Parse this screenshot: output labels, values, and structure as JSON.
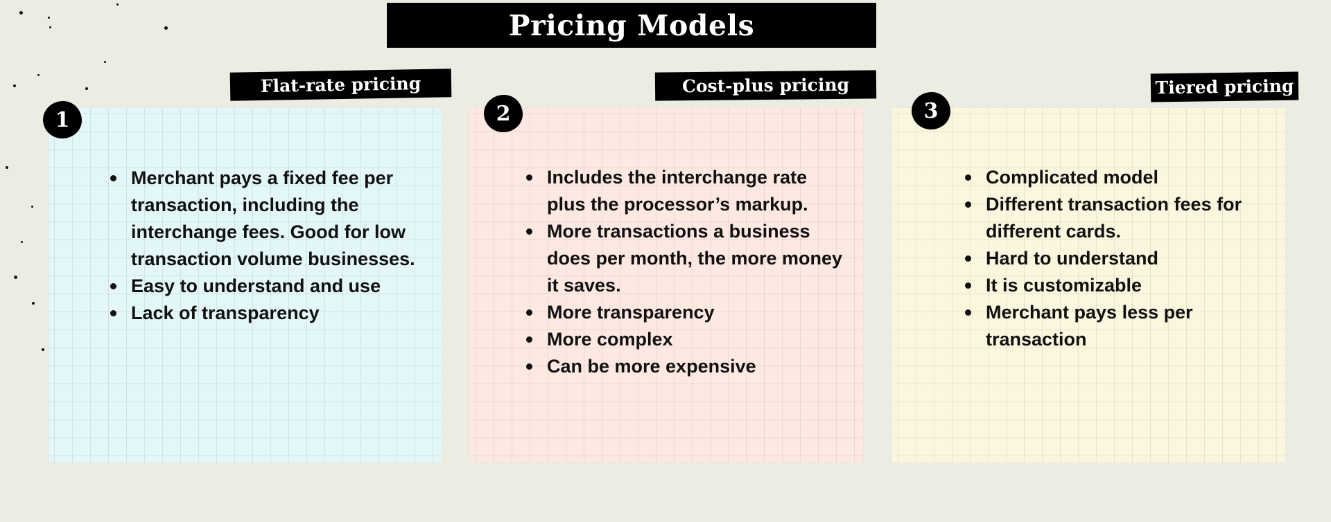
{
  "title": "Pricing Models",
  "models": [
    {
      "number": "1",
      "label": "Flat-rate pricing",
      "points": [
        "Merchant pays a fixed fee per transaction, including the interchange fees. Good for low transaction volume businesses.",
        "Easy to understand and use",
        "Lack of transparency"
      ]
    },
    {
      "number": "2",
      "label": "Cost-plus pricing",
      "points": [
        "Includes the interchange rate plus the processor’s markup.",
        "More transactions a business does per month, the more money it saves.",
        "More transparency",
        "More complex",
        "Can be more expensive"
      ]
    },
    {
      "number": "3",
      "label": "Tiered pricing",
      "points": [
        "Complicated model",
        "Different transaction fees for different cards.",
        "Hard to understand",
        "It is customizable",
        "Merchant pays less per transaction"
      ]
    }
  ],
  "colors": {
    "background": "#edece2",
    "card_1": "#e3f6f8",
    "card_2": "#fde9e2",
    "card_3": "#fbf7de",
    "label_bg": "#000000"
  }
}
